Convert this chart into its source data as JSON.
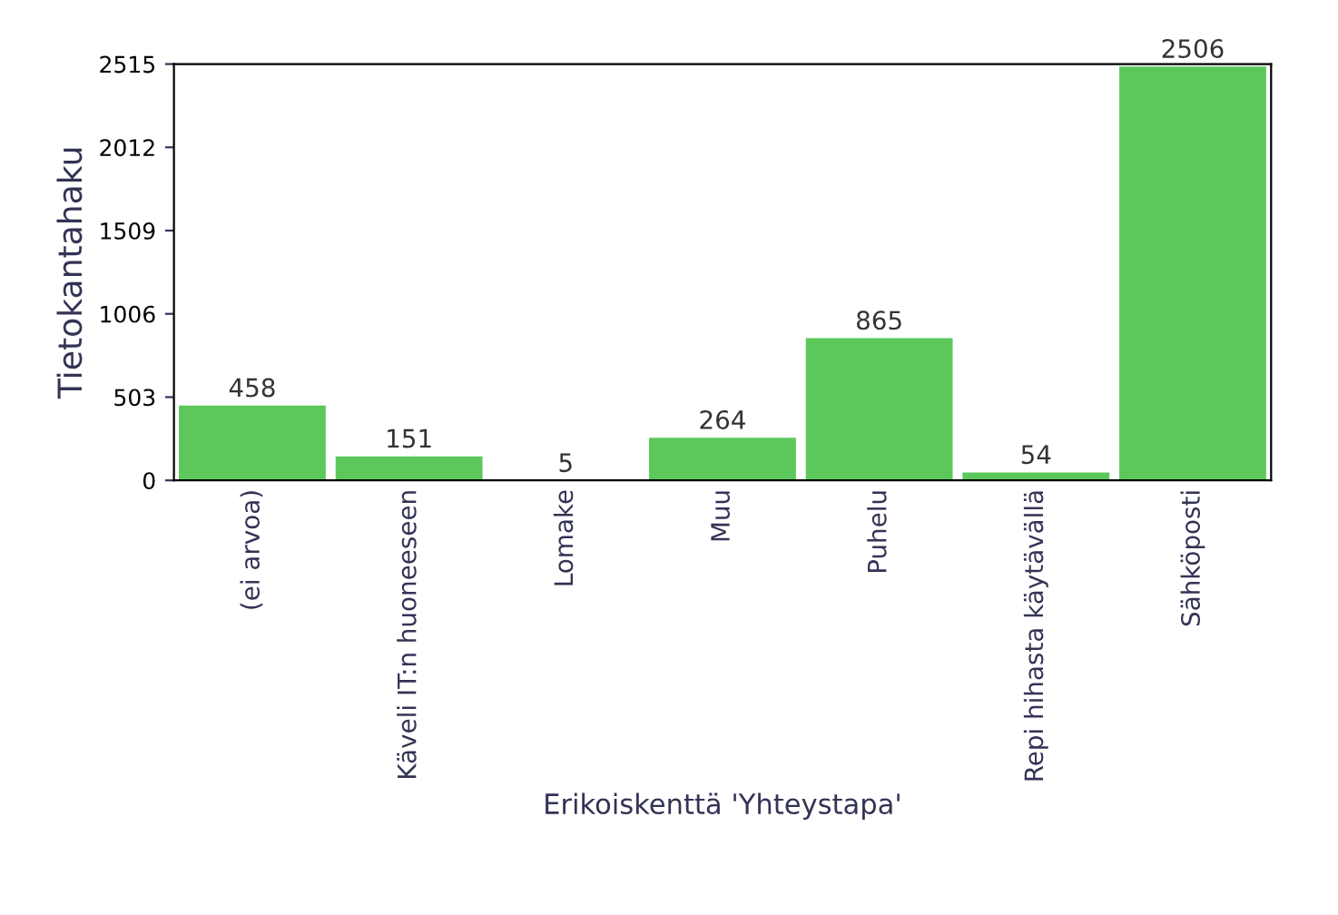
{
  "chart_data": {
    "type": "bar",
    "xlabel": "Erikoiskenttä 'Yhteystapa'",
    "ylabel": "Tietokantahaku",
    "categories": [
      "(ei arvoa)",
      "Käveli IT:n huoneeseen",
      "Lomake",
      "Muu",
      "Puhelu",
      "Repi hihasta käytävällä",
      "Sähköposti"
    ],
    "values": [
      458,
      151,
      5,
      264,
      865,
      54,
      2506
    ],
    "color": "#5cc85c",
    "ylim": [
      0,
      2515
    ],
    "yticks": [
      0,
      503,
      1006,
      1509,
      2012,
      2515
    ],
    "data_labels": true,
    "grid": false,
    "legend": false
  }
}
